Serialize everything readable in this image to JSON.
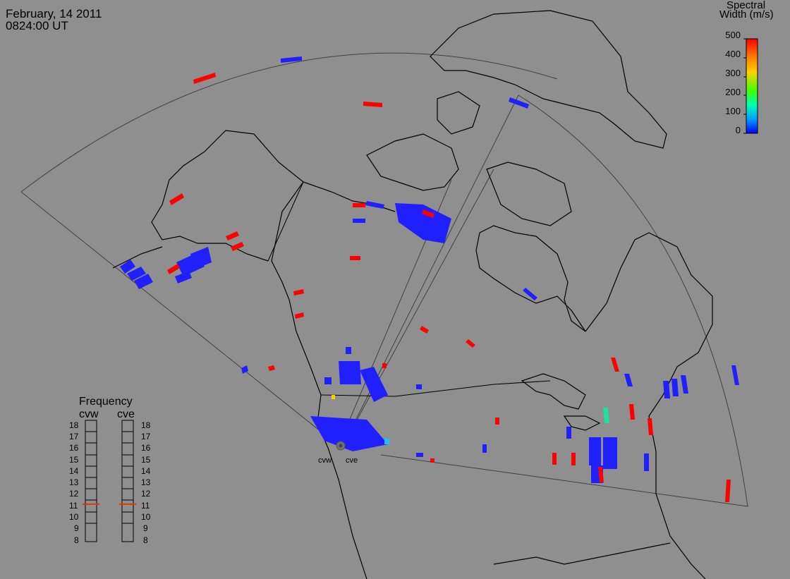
{
  "header": {
    "date": "February, 14 2011",
    "time": "0824:00 UT"
  },
  "colorbar": {
    "title_line1": "Spectral",
    "title_line2": "Width (m/s)",
    "ticks": [
      "500",
      "400",
      "300",
      "200",
      "100",
      "0"
    ],
    "colors": [
      "#ff0000",
      "#ff8000",
      "#ffd000",
      "#40ff00",
      "#00ffb0",
      "#00a0ff",
      "#0000ff"
    ]
  },
  "frequency": {
    "title": "Frequency",
    "radar_left": "cvw",
    "radar_right": "cve",
    "ticks": [
      "18",
      "17",
      "16",
      "15",
      "14",
      "13",
      "12",
      "11",
      "10",
      "9",
      "8"
    ],
    "cvw_value": 10.8,
    "cve_value": 10.8
  },
  "sites": {
    "west": "cvw",
    "east": "cve"
  },
  "colors": {
    "background": "#8f8f8f",
    "coast": "#000000",
    "fov": "#404040",
    "low_width": "#2020ff",
    "high_width": "#ff0000",
    "frequency_marker": "#d04000"
  }
}
